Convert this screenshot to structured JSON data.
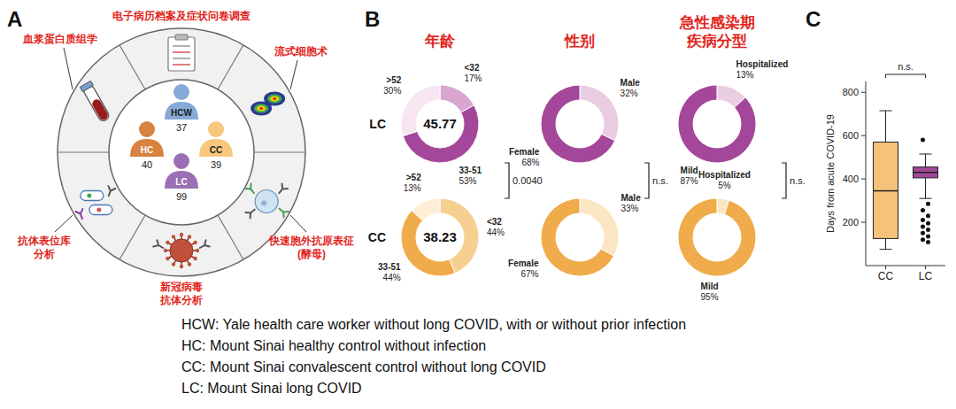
{
  "panel_a": {
    "label": "A",
    "methods": [
      {
        "label": "电子病历档案及症状问卷调查"
      },
      {
        "label": "流式细胞术"
      },
      {
        "label": "快速胞外抗原表征(酵母)"
      },
      {
        "label": "新冠病毒抗体分析"
      },
      {
        "label": "抗体表位库分析"
      },
      {
        "label": "血浆蛋白质组学"
      }
    ],
    "cohorts": [
      {
        "name": "HCW",
        "n": 37,
        "color": "#86a9d8"
      },
      {
        "name": "HC",
        "n": 40,
        "color": "#d7823f"
      },
      {
        "name": "CC",
        "n": 39,
        "color": "#f6c77d"
      },
      {
        "name": "LC",
        "n": 99,
        "color": "#9b6fb5"
      }
    ]
  },
  "chart_data": [
    {
      "type": "donut",
      "panel_label": "B",
      "data_labels": true,
      "rows": [
        "LC",
        "CC"
      ],
      "columns": [
        {
          "title": "年龄",
          "comparison": "0.0040",
          "categories": [
            "<32",
            "33-51",
            ">52"
          ],
          "values": [
            [
              17,
              53,
              30
            ],
            [
              44,
              44,
              13
            ]
          ],
          "value_labels": [
            [
              "17%",
              "53%",
              "30%"
            ],
            [
              "44%",
              "44%",
              "13%"
            ]
          ],
          "center_values": [
            45.77,
            38.23
          ],
          "colors": [
            [
              "#d9a6cf",
              "#a4479a",
              "#f7e6f2"
            ],
            [
              "#f7cf90",
              "#f0ab4a",
              "#fdeed5"
            ]
          ]
        },
        {
          "title": "性别",
          "comparison": "n.s.",
          "categories": [
            "Male",
            "Female"
          ],
          "values": [
            [
              32,
              68
            ],
            [
              33,
              67
            ]
          ],
          "value_labels": [
            [
              "32%",
              "68%"
            ],
            [
              "33%",
              "67%"
            ]
          ],
          "colors": [
            [
              "#e9cde3",
              "#a4479a"
            ],
            [
              "#fbe6c4",
              "#f0ab4a"
            ]
          ]
        },
        {
          "title": "急性感染期疾病分型",
          "comparison": "n.s.",
          "categories": [
            "Hospitalized",
            "Mild"
          ],
          "values": [
            [
              13,
              87
            ],
            [
              5,
              95
            ]
          ],
          "value_labels": [
            [
              "13%",
              "87%"
            ],
            [
              "5%",
              "95%"
            ]
          ],
          "colors": [
            [
              "#e9cde3",
              "#a4479a"
            ],
            [
              "#fbe6c4",
              "#f0ab4a"
            ]
          ]
        }
      ]
    },
    {
      "type": "box",
      "panel_label": "C",
      "categories": [
        "CC",
        "LC"
      ],
      "ylabel": "Days from acute COVID-19",
      "ylim": [
        0,
        850
      ],
      "yticks": [
        200,
        400,
        600,
        800
      ],
      "comparison": "n.s.",
      "boxes": [
        {
          "min": 75,
          "q1": 125,
          "median": 345,
          "q3": 570,
          "max": 715,
          "outliers": [],
          "color": "#f6c27a"
        },
        {
          "min": 310,
          "q1": 405,
          "median": 430,
          "q3": 455,
          "max": 515,
          "outliers": [
            580,
            285,
            255,
            230,
            210,
            195,
            180,
            165,
            150,
            135,
            120,
            108
          ],
          "color": "#a4479a"
        }
      ]
    }
  ],
  "notes": [
    "HCW: Yale health care worker without long COVID, with or without prior infection",
    "HC: Mount Sinai healthy control without infection",
    "CC: Mount Sinai convalescent control without long COVID",
    "LC: Mount Sinai long COVID"
  ]
}
